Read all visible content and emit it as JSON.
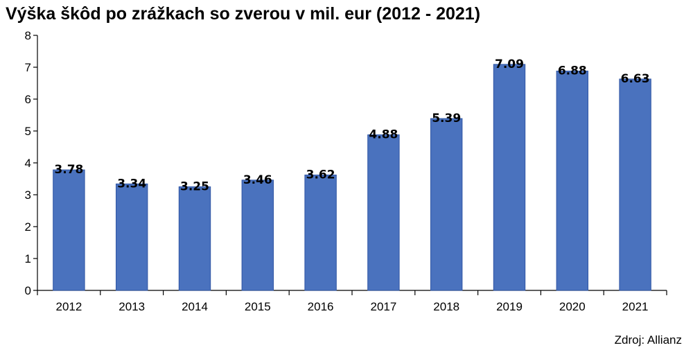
{
  "chart_data": {
    "type": "bar",
    "title": "Výška škôd po zrážkach so zverou v mil. eur (2012 - 2021)",
    "categories": [
      "2012",
      "2013",
      "2014",
      "2015",
      "2016",
      "2017",
      "2018",
      "2019",
      "2020",
      "2021"
    ],
    "values": [
      3.78,
      3.34,
      3.25,
      3.46,
      3.62,
      4.88,
      5.39,
      7.09,
      6.88,
      6.63
    ],
    "value_labels": [
      "3.78",
      "3.34",
      "3.25",
      "3.46",
      "3.62",
      "4.88",
      "5.39",
      "7.09",
      "6.88",
      "6.63"
    ],
    "ylim": [
      0,
      8
    ],
    "yticks": [
      "0",
      "1",
      "2",
      "3",
      "4",
      "5",
      "6",
      "7",
      "8"
    ],
    "xlabel": "",
    "ylabel": "",
    "grid": false,
    "bar_color": "#4a72be",
    "bar_edge_color": "#2f55a4"
  },
  "footer": {
    "source": "Zdroj: Allianz"
  }
}
